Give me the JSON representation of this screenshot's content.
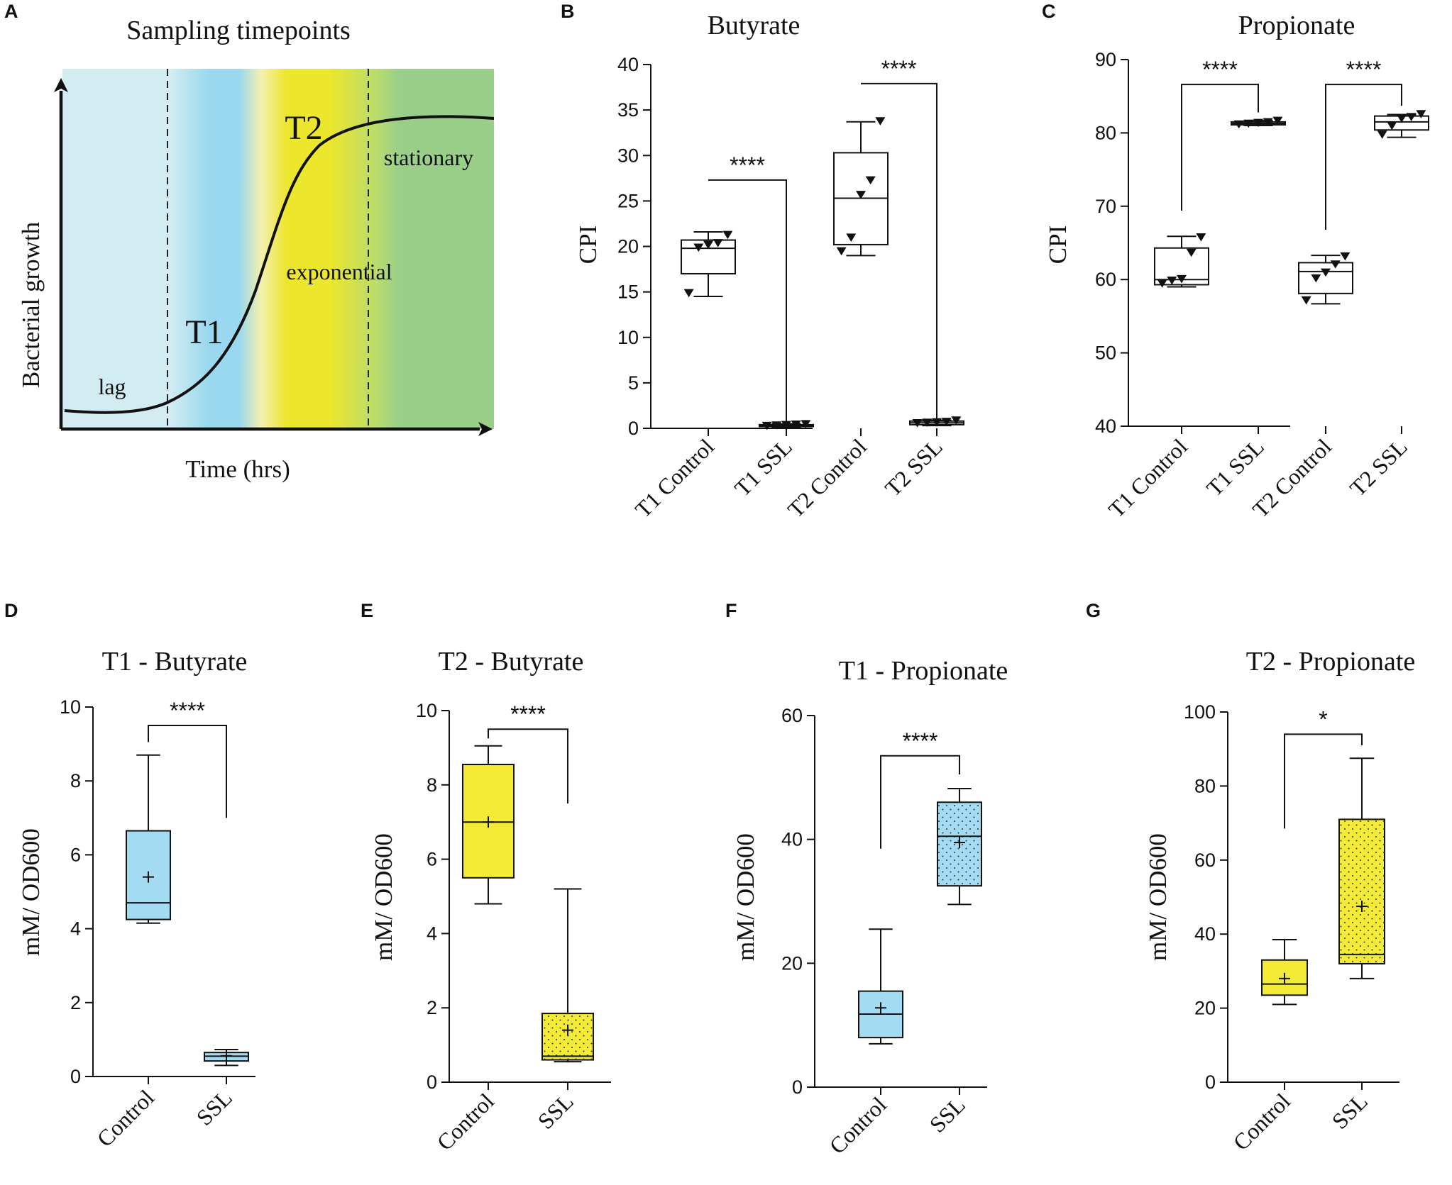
{
  "colors": {
    "lag_bg": "#d2ecf2",
    "t1_blue": "#99d8ee",
    "t2_yellow": "#ece62c",
    "stationary_green": "#9acf8a",
    "box_blue": "#a3dcf2",
    "box_yellow": "#f4eb37",
    "ink": "#111111"
  },
  "chart_data": [
    {
      "panel": "A",
      "type": "diagram",
      "title": "Sampling timepoints",
      "xlabel": "Time (hrs)",
      "ylabel": "Bacterial growth",
      "phase_labels": [
        "lag",
        "exponential",
        "stationary"
      ],
      "timepoint_labels": [
        "T1",
        "T2"
      ]
    },
    {
      "panel": "B",
      "type": "box",
      "title": "Butyrate",
      "ylabel": "CPI",
      "ylim": [
        0,
        40
      ],
      "yticks": [
        0,
        5,
        10,
        15,
        20,
        25,
        30,
        35,
        40
      ],
      "categories": [
        "T1 Control",
        "T1 SSL",
        "T2 Control",
        "T2 SSL"
      ],
      "boxes": [
        {
          "min": 14.5,
          "q1": 17.0,
          "median": 19.8,
          "q3": 20.7,
          "max": 21.6,
          "points": [
            14.9,
            19.9,
            20.2,
            20.4,
            21.3
          ],
          "fill": "none"
        },
        {
          "min": 0.1,
          "q1": 0.2,
          "median": 0.3,
          "q3": 0.4,
          "max": 0.5,
          "points": [
            0.3,
            0.35,
            0.4,
            0.45,
            0.5
          ],
          "fill": "none"
        },
        {
          "min": 19.0,
          "q1": 20.2,
          "median": 25.3,
          "q3": 30.3,
          "max": 33.7,
          "points": [
            19.5,
            21.0,
            25.7,
            27.3,
            33.8
          ],
          "fill": "none"
        },
        {
          "min": 0.3,
          "q1": 0.4,
          "median": 0.6,
          "q3": 0.8,
          "max": 0.9,
          "points": [
            0.6,
            0.65,
            0.7,
            0.75,
            0.9
          ],
          "fill": "none"
        }
      ],
      "comparisons": [
        {
          "a": 0,
          "b": 1,
          "label": "****",
          "y": 27.3,
          "left_end": 27.3,
          "right_end": 0.8
        },
        {
          "a": 2,
          "b": 3,
          "label": "****",
          "y": 37.9,
          "left_end": 37.9,
          "right_end": 1.0
        }
      ]
    },
    {
      "panel": "C",
      "type": "box",
      "title": "Propionate",
      "ylabel": "CPI",
      "ylim": [
        40,
        90
      ],
      "yticks": [
        40,
        50,
        60,
        70,
        80,
        90
      ],
      "categories": [
        "T1 Control",
        "T1 SSL",
        "T2 Control",
        "T2 SSL"
      ],
      "boxes": [
        {
          "min": 59.0,
          "q1": 59.3,
          "median": 60.0,
          "q3": 64.3,
          "max": 65.9,
          "points": [
            59.5,
            59.9,
            60.1,
            63.7,
            65.8
          ],
          "fill": "none"
        },
        {
          "min": 81.0,
          "q1": 81.1,
          "median": 81.3,
          "q3": 81.5,
          "max": 81.7,
          "points": [
            81.2,
            81.3,
            81.4,
            81.5,
            81.7
          ],
          "fill": "none"
        },
        {
          "min": 56.7,
          "q1": 58.1,
          "median": 61.1,
          "q3": 62.3,
          "max": 63.3,
          "points": [
            57.2,
            60.2,
            61.0,
            62.1,
            63.2
          ],
          "fill": "none"
        },
        {
          "min": 79.4,
          "q1": 80.4,
          "median": 81.5,
          "q3": 82.3,
          "max": 82.5,
          "points": [
            79.8,
            81.0,
            82.0,
            82.2,
            82.6
          ],
          "fill": "none"
        }
      ],
      "comparisons": [
        {
          "a": 0,
          "b": 1,
          "label": "****",
          "y": 86.6,
          "left_end": 69.4,
          "right_end": 82.8
        },
        {
          "a": 2,
          "b": 3,
          "label": "****",
          "y": 86.6,
          "left_end": 66.8,
          "right_end": 83.7
        }
      ]
    },
    {
      "panel": "D",
      "type": "box",
      "title": "T1 - Butyrate",
      "ylabel": "mM/ OD600",
      "ylim": [
        0,
        10
      ],
      "yticks": [
        0,
        2,
        4,
        6,
        8,
        10
      ],
      "categories": [
        "Control",
        "SSL"
      ],
      "boxes": [
        {
          "min": 4.15,
          "q1": 4.25,
          "median": 4.7,
          "q3": 6.65,
          "max": 8.7,
          "mean": 5.4,
          "fill": "blue",
          "dotted": false
        },
        {
          "min": 0.3,
          "q1": 0.42,
          "median": 0.55,
          "q3": 0.65,
          "max": 0.73,
          "mean": 0.56,
          "fill": "blue",
          "dotted": false
        }
      ],
      "comparisons": [
        {
          "a": 0,
          "b": 1,
          "label": "****",
          "y": 9.5,
          "left_end": 9.05,
          "right_end": 7.0
        }
      ]
    },
    {
      "panel": "E",
      "type": "box",
      "title": "T2 - Butyrate",
      "ylabel": "mM/ OD600",
      "ylim": [
        0,
        10
      ],
      "yticks": [
        0,
        2,
        4,
        6,
        8,
        10
      ],
      "categories": [
        "Control",
        "SSL"
      ],
      "boxes": [
        {
          "min": 4.8,
          "q1": 5.5,
          "median": 7.0,
          "q3": 8.55,
          "max": 9.05,
          "mean": 7.0,
          "fill": "yellow",
          "dotted": false
        },
        {
          "min": 0.55,
          "q1": 0.6,
          "median": 0.7,
          "q3": 1.85,
          "max": 5.2,
          "mean": 1.4,
          "fill": "yellow",
          "dotted": true
        }
      ],
      "comparisons": [
        {
          "a": 0,
          "b": 1,
          "label": "****",
          "y": 9.5,
          "left_end": 9.25,
          "right_end": 7.5
        }
      ]
    },
    {
      "panel": "F",
      "type": "box",
      "title": "T1 - Propionate",
      "ylabel": "mM/ OD600",
      "ylim": [
        0,
        60
      ],
      "yticks": [
        0,
        20,
        40,
        60
      ],
      "categories": [
        "Control",
        "SSL"
      ],
      "boxes": [
        {
          "min": 7.0,
          "q1": 8.0,
          "median": 11.8,
          "q3": 15.5,
          "max": 25.5,
          "mean": 12.8,
          "fill": "blue",
          "dotted": false
        },
        {
          "min": 29.5,
          "q1": 32.5,
          "median": 40.5,
          "q3": 46.0,
          "max": 48.2,
          "mean": 39.5,
          "fill": "blue",
          "dotted": true
        }
      ],
      "comparisons": [
        {
          "a": 0,
          "b": 1,
          "label": "****",
          "y": 53.5,
          "left_end": 38.5,
          "right_end": 50.5
        }
      ]
    },
    {
      "panel": "G",
      "type": "box",
      "title": "T2 - Propionate",
      "ylabel": "mM/ OD600",
      "ylim": [
        0,
        100
      ],
      "yticks": [
        0,
        20,
        40,
        60,
        80,
        100
      ],
      "categories": [
        "Control",
        "SSL"
      ],
      "boxes": [
        {
          "min": 21.0,
          "q1": 23.5,
          "median": 26.5,
          "q3": 33.0,
          "max": 38.5,
          "mean": 28.0,
          "fill": "yellow",
          "dotted": false
        },
        {
          "min": 28.0,
          "q1": 32.0,
          "median": 34.5,
          "q3": 71.0,
          "max": 87.5,
          "mean": 47.5,
          "fill": "yellow",
          "dotted": true
        }
      ],
      "comparisons": [
        {
          "a": 0,
          "b": 1,
          "label": "*",
          "y": 94.0,
          "left_end": 68.5,
          "right_end": 91.0
        }
      ]
    }
  ]
}
